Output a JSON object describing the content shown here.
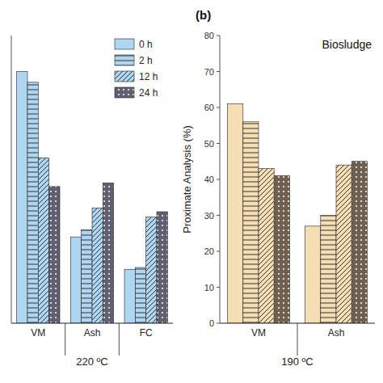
{
  "chart_data": [
    {
      "type": "bar",
      "xlabel": "220 ºC",
      "categories": [
        "VM",
        "Ash",
        "FC"
      ],
      "series": [
        {
          "name": "0 h",
          "color": "#AED6F1",
          "values": [
            70,
            24,
            15
          ]
        },
        {
          "name": "2 h",
          "color": "#AED6F1",
          "values": [
            67,
            26,
            15.5
          ]
        },
        {
          "name": "12 h",
          "color": "#AED6F1",
          "values": [
            46,
            32,
            29.5
          ]
        },
        {
          "name": "24 h",
          "color": "#606070",
          "values": [
            38,
            39,
            31
          ]
        }
      ],
      "ylim": [
        0,
        80
      ],
      "tick_labels": "x",
      "legend": "upper right"
    },
    {
      "type": "bar",
      "title": "(b)",
      "annotations": [
        "Biosludge"
      ],
      "xlabel": "190 ºC",
      "ylabel": "Proximate Analysis (%)",
      "categories": [
        "VM",
        "Ash"
      ],
      "series": [
        {
          "color": "#F5DEB3",
          "values": [
            61,
            27
          ]
        },
        {
          "color": "#F5DEB3",
          "values": [
            56,
            30
          ]
        },
        {
          "color": "#F5DEB3",
          "values": [
            43,
            44
          ]
        },
        {
          "color": "#706050",
          "values": [
            41,
            45
          ]
        }
      ],
      "ylim": [
        0,
        80
      ],
      "yticks": [
        0,
        10,
        20,
        30,
        40,
        50,
        60,
        70,
        80
      ]
    }
  ]
}
